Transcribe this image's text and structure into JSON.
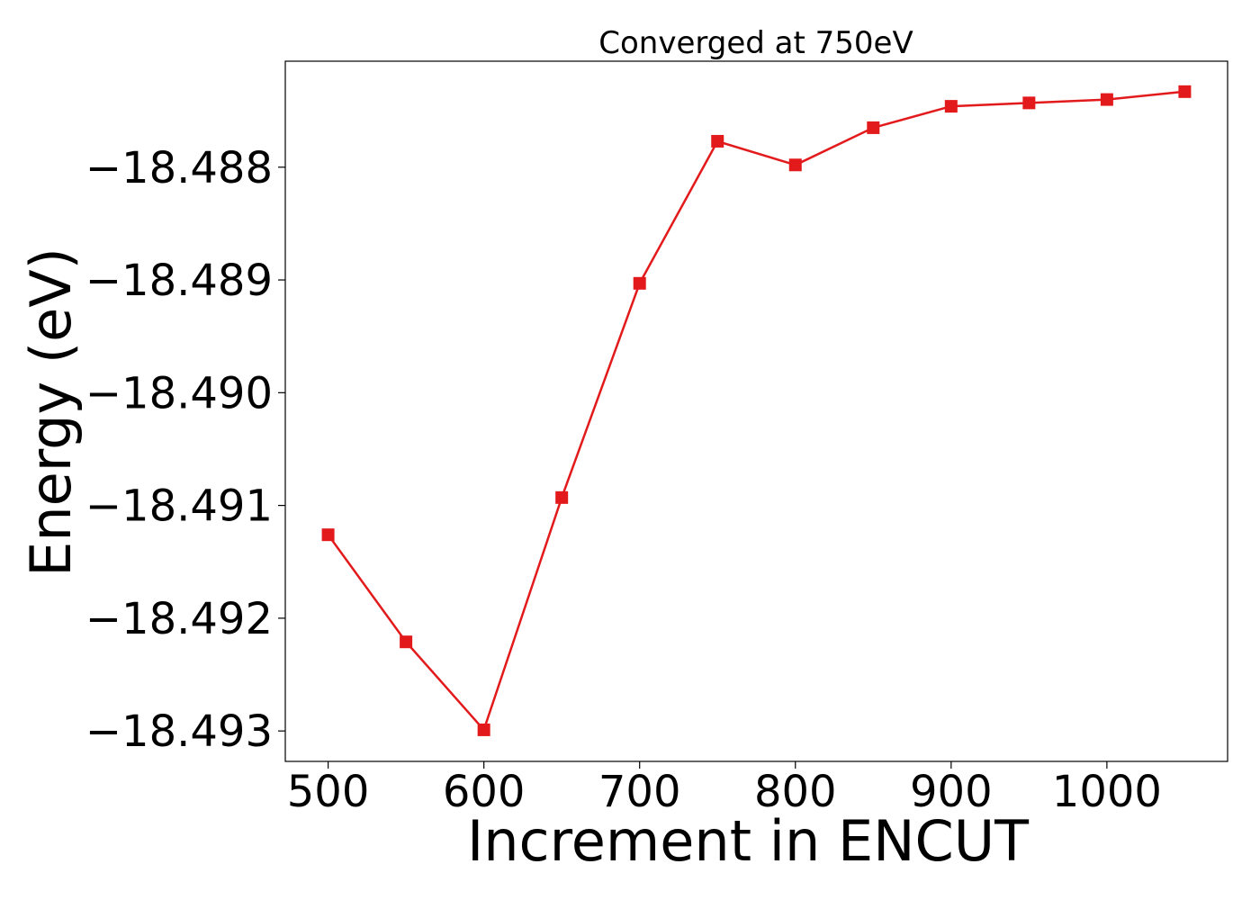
{
  "chart_data": {
    "type": "line",
    "title": "Converged at 750eV",
    "xlabel": "Increment in ENCUT",
    "ylabel": "Energy (eV)",
    "xlim": [
      472.5,
      1077.5
    ],
    "ylim": [
      -18.49327,
      -18.48706
    ],
    "xticks": [
      500,
      600,
      700,
      800,
      900,
      1000
    ],
    "xtick_labels": [
      "500",
      "600",
      "700",
      "800",
      "900",
      "1000"
    ],
    "yticks": [
      -18.488,
      -18.489,
      -18.49,
      -18.491,
      -18.492,
      -18.493
    ],
    "ytick_labels": [
      "−18.488",
      "−18.489",
      "−18.490",
      "−18.491",
      "−18.492",
      "−18.493"
    ],
    "grid": false,
    "series": [
      {
        "color": "#e31a1c",
        "marker": "square",
        "x": [
          500,
          550,
          600,
          650,
          700,
          750,
          800,
          850,
          900,
          950,
          1000,
          1050
        ],
        "y": [
          -18.49126,
          -18.49221,
          -18.49299,
          -18.49093,
          -18.48903,
          -18.48777,
          -18.48798,
          -18.48765,
          -18.48746,
          -18.48743,
          -18.4874,
          -18.48733
        ]
      }
    ]
  }
}
